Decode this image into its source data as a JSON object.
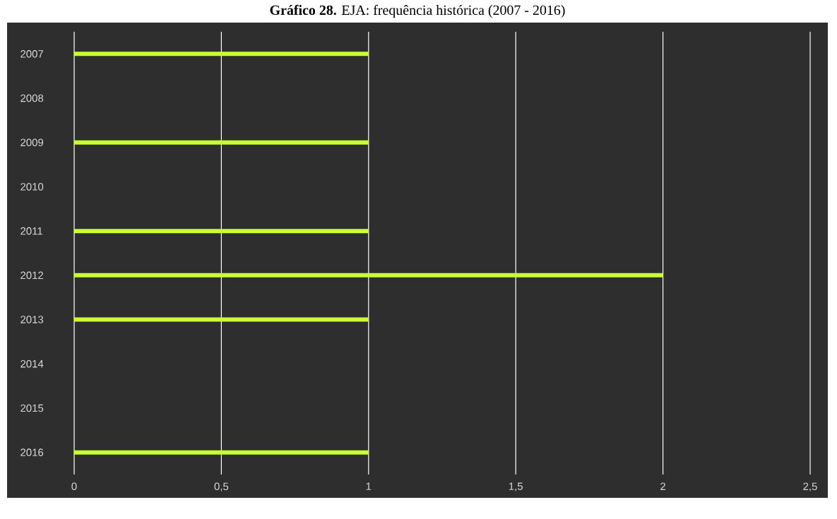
{
  "chart_data": {
    "type": "bar",
    "orientation": "horizontal",
    "title": "**Gráfico 28.** EJA: frequência histórica (2007 - 2016)",
    "categories": [
      "2007",
      "2008",
      "2009",
      "2010",
      "2011",
      "2012",
      "2013",
      "2014",
      "2015",
      "2016"
    ],
    "values": [
      1,
      0,
      1,
      0,
      1,
      2,
      1,
      0,
      0,
      1
    ],
    "color": "#ccff33",
    "xlim": [
      0,
      2.5
    ],
    "xticks": [
      0,
      {
        "value": 0.5,
        "label": "0,5"
      },
      1,
      {
        "value": 1.5,
        "label": "1,5"
      },
      2,
      {
        "value": 2.5,
        "label": "2,5"
      }
    ],
    "grid": "x"
  }
}
